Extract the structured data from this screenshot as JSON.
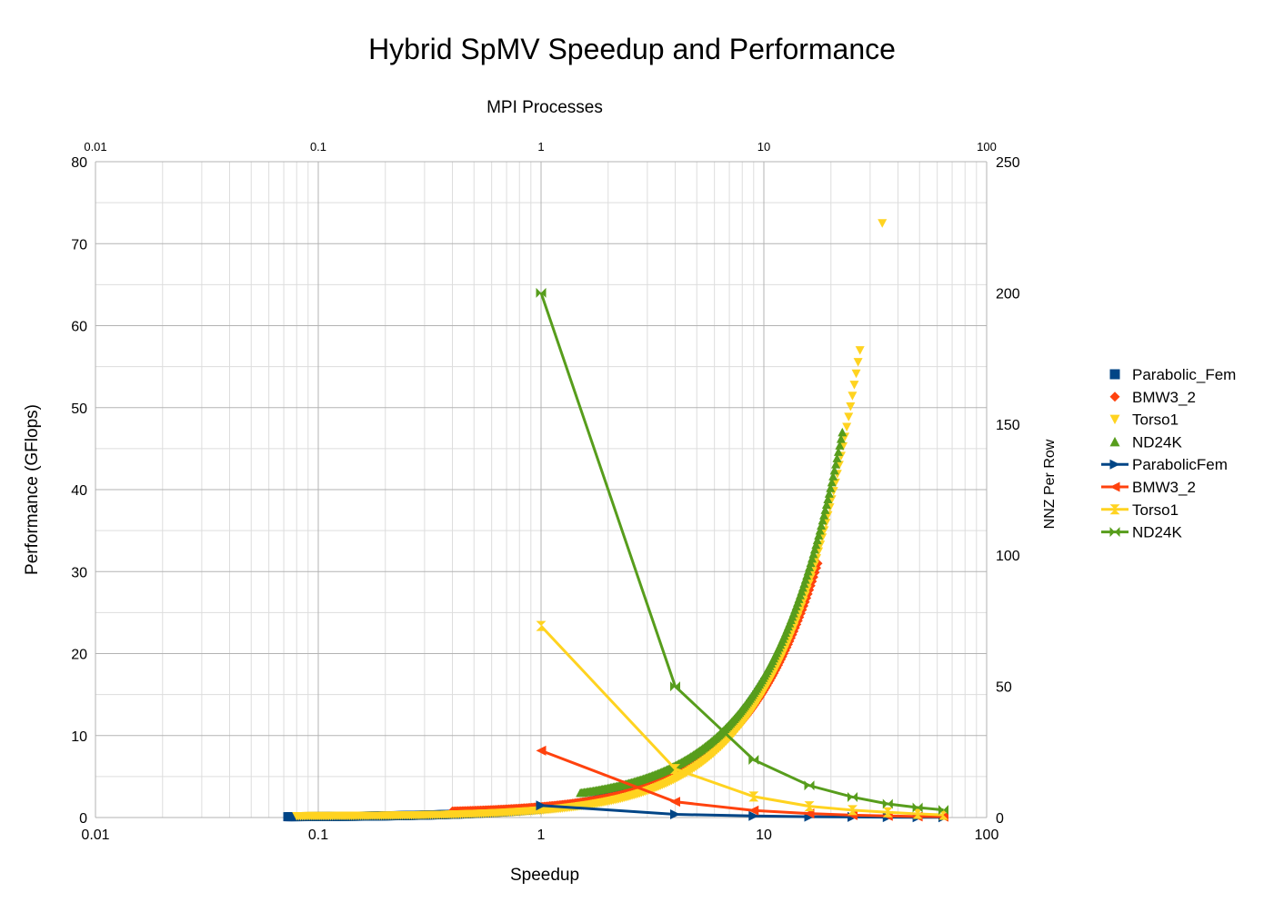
{
  "chart_data": {
    "type": "scatter",
    "title": "Hybrid SpMV Speedup and Performance",
    "xlabel": "Speedup",
    "ylabel": "Performance (GFlops)",
    "x2label": "MPI Processes",
    "y2label": "NNZ Per Row",
    "xscale": "log",
    "xlim": [
      0.01,
      100
    ],
    "ylim": [
      0,
      80
    ],
    "y2lim": [
      0,
      250
    ],
    "x_ticks": [
      "0.01",
      "0.1",
      "1",
      "10",
      "100"
    ],
    "x2_ticks": [
      "0.01",
      "0.1",
      "1",
      "10",
      "100"
    ],
    "y_ticks": [
      "0",
      "10",
      "20",
      "30",
      "40",
      "50",
      "60",
      "70",
      "80"
    ],
    "y2_ticks": [
      "0",
      "50",
      "100",
      "150",
      "200",
      "250"
    ],
    "grid": true,
    "legend_position": "right",
    "series": [
      {
        "name": "Parabolic_Fem",
        "kind": "scatter",
        "axis": "primary",
        "marker": "square",
        "color": "#004586",
        "x_range": [
          0.073,
          10.1
        ],
        "y_range": [
          0.1,
          16.5
        ],
        "model": "power",
        "exponent": 1.2,
        "points": 300
      },
      {
        "name": "BMW3_2",
        "kind": "scatter",
        "axis": "primary",
        "marker": "diamond",
        "color": "#ff420e",
        "x_range": [
          0.4,
          17.5
        ],
        "y_range": [
          0.8,
          31
        ],
        "model": "power",
        "exponent": 1.28,
        "points": 260
      },
      {
        "name": "Torso1",
        "kind": "scatter",
        "axis": "primary",
        "marker": "triangle-down",
        "color": "#ffd320",
        "x_range": [
          0.08,
          27
        ],
        "y_range": [
          0.17,
          57
        ],
        "model": "power",
        "exponent": 1.32,
        "points": 300,
        "outlier": [
          34,
          72.5
        ]
      },
      {
        "name": "ND24K",
        "kind": "scatter",
        "axis": "primary",
        "marker": "triangle-up",
        "color": "#579d1c",
        "x_range": [
          1.5,
          22.5
        ],
        "y_range": [
          3,
          47
        ],
        "model": "power",
        "exponent": 1.33,
        "points": 200
      },
      {
        "name": "ParabolicFem",
        "kind": "line",
        "axis": "secondary",
        "marker": "triangle-right",
        "color": "#004586",
        "x": [
          1,
          4,
          9,
          16,
          25,
          36,
          49,
          64
        ],
        "y": [
          4.6,
          1.2,
          0.6,
          0.3,
          0.2,
          0.15,
          0.1,
          0.08
        ]
      },
      {
        "name": "BMW3_2",
        "kind": "line",
        "axis": "secondary",
        "marker": "triangle-left",
        "color": "#ff420e",
        "x": [
          1,
          4,
          9,
          16,
          25,
          36,
          49,
          64
        ],
        "y": [
          25.5,
          6,
          2.7,
          1.5,
          0.9,
          0.6,
          0.4,
          0.3
        ]
      },
      {
        "name": "Torso1",
        "kind": "line",
        "axis": "secondary",
        "marker": "hourglass",
        "color": "#ffd320",
        "x": [
          1,
          4,
          9,
          16,
          25,
          36,
          49,
          64
        ],
        "y": [
          73,
          18.5,
          8,
          4.3,
          2.8,
          2,
          1.4,
          1
        ]
      },
      {
        "name": "ND24K",
        "kind": "line",
        "axis": "secondary",
        "marker": "bowtie",
        "color": "#579d1c",
        "x": [
          1,
          4,
          9,
          16,
          25,
          36,
          49,
          64
        ],
        "y": [
          200,
          50,
          22,
          12.2,
          7.8,
          5.2,
          3.8,
          2.9
        ]
      }
    ]
  }
}
